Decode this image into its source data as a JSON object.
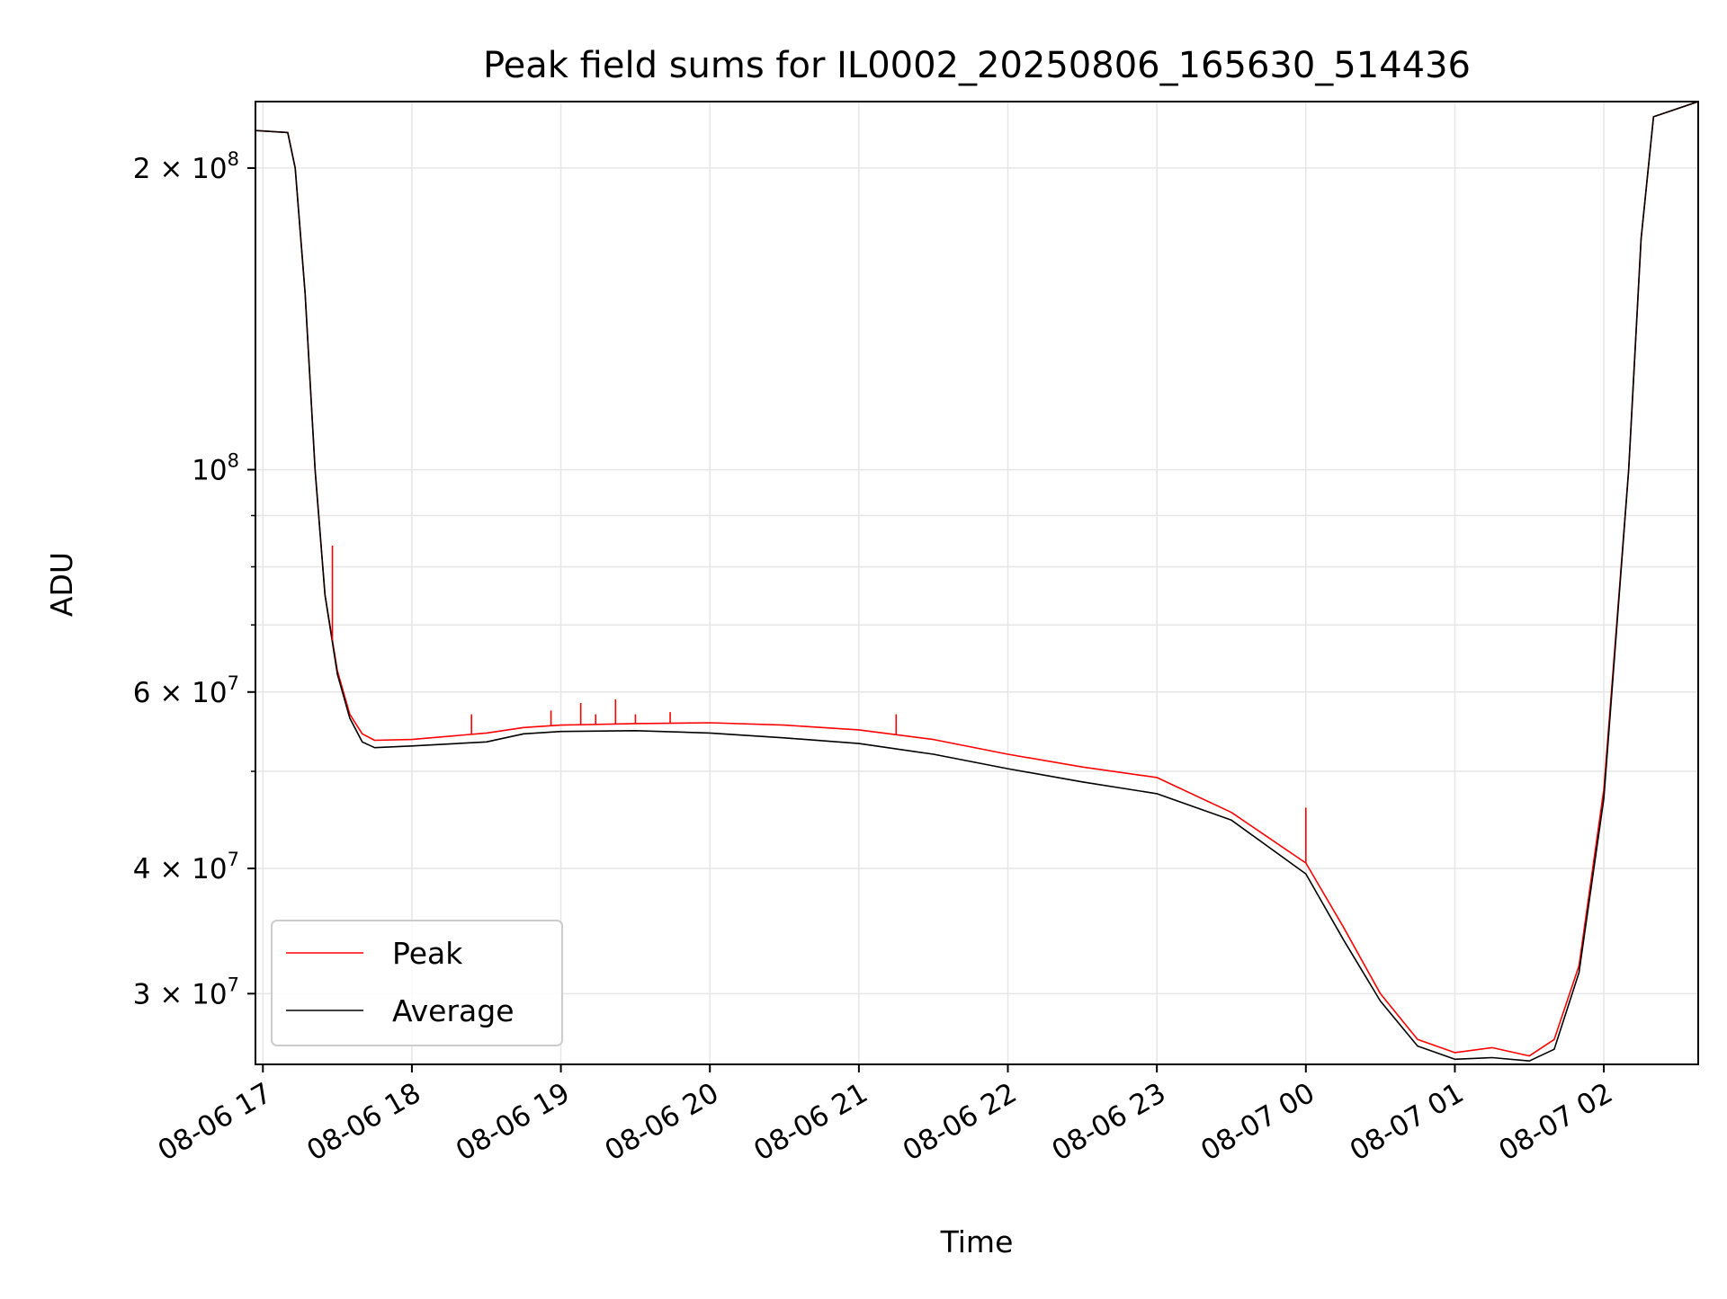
{
  "chart_data": {
    "type": "line",
    "title": "Peak field sums for IL0002_20250806_165630_514436",
    "xlabel": "Time",
    "ylabel": "ADU",
    "y_scale": "log",
    "ylim": [
      25500000,
      233000000
    ],
    "x_range": [
      "2025-08-06 16:57",
      "2025-08-07 02:38"
    ],
    "grid": true,
    "legend_position": "lower-left",
    "x_ticks": [
      {
        "t": "2025-08-06 17:00",
        "label": "08-06 17"
      },
      {
        "t": "2025-08-06 18:00",
        "label": "08-06 18"
      },
      {
        "t": "2025-08-06 19:00",
        "label": "08-06 19"
      },
      {
        "t": "2025-08-06 20:00",
        "label": "08-06 20"
      },
      {
        "t": "2025-08-06 21:00",
        "label": "08-06 21"
      },
      {
        "t": "2025-08-06 22:00",
        "label": "08-06 22"
      },
      {
        "t": "2025-08-06 23:00",
        "label": "08-06 23"
      },
      {
        "t": "2025-08-07 00:00",
        "label": "08-07 00"
      },
      {
        "t": "2025-08-07 01:00",
        "label": "08-07 01"
      },
      {
        "t": "2025-08-07 02:00",
        "label": "08-07 02"
      }
    ],
    "y_ticks_major": [
      {
        "value": 200000000,
        "mant": "2 × 10",
        "exp": "8"
      },
      {
        "value": 100000000,
        "mant": "10",
        "exp": "8"
      },
      {
        "value": 60000000,
        "mant": "6 × 10",
        "exp": "7"
      },
      {
        "value": 40000000,
        "mant": "4 × 10",
        "exp": "7"
      },
      {
        "value": 30000000,
        "mant": "3 × 10",
        "exp": "7"
      }
    ],
    "y_grid_minor": [
      50000000,
      70000000,
      80000000,
      90000000
    ],
    "series": [
      {
        "name": "Peak",
        "color": "#ff0000",
        "x": [
          "2025-08-06 16:57",
          "2025-08-06 17:10",
          "2025-08-06 17:13",
          "2025-08-06 17:17",
          "2025-08-06 17:21",
          "2025-08-06 17:25",
          "2025-08-06 17:30",
          "2025-08-06 17:35",
          "2025-08-06 17:40",
          "2025-08-06 17:45",
          "2025-08-06 18:00",
          "2025-08-06 18:30",
          "2025-08-06 18:45",
          "2025-08-06 19:00",
          "2025-08-06 19:30",
          "2025-08-06 20:00",
          "2025-08-06 20:30",
          "2025-08-06 21:00",
          "2025-08-06 21:30",
          "2025-08-06 22:00",
          "2025-08-06 22:30",
          "2025-08-06 23:00",
          "2025-08-06 23:30",
          "2025-08-07 00:00",
          "2025-08-07 00:15",
          "2025-08-07 00:30",
          "2025-08-07 00:45",
          "2025-08-07 01:00",
          "2025-08-07 01:15",
          "2025-08-07 01:30",
          "2025-08-07 01:40",
          "2025-08-07 01:50",
          "2025-08-07 02:00",
          "2025-08-07 02:10",
          "2025-08-07 02:15",
          "2025-08-07 02:20",
          "2025-08-07 02:38"
        ],
        "values": [
          218000000,
          217000000,
          200000000,
          150000000,
          100000000,
          75000000,
          63000000,
          57000000,
          54500000,
          53700000,
          53800000,
          54600000,
          55300000,
          55600000,
          55800000,
          55900000,
          55600000,
          55000000,
          53800000,
          52000000,
          50500000,
          49300000,
          45500000,
          40500000,
          35000000,
          30000000,
          27000000,
          26200000,
          26500000,
          26000000,
          27000000,
          32000000,
          48000000,
          100000000,
          170000000,
          225000000,
          233000000
        ]
      },
      {
        "name": "Average",
        "color": "#000000",
        "x": [
          "2025-08-06 16:57",
          "2025-08-06 17:10",
          "2025-08-06 17:13",
          "2025-08-06 17:17",
          "2025-08-06 17:21",
          "2025-08-06 17:25",
          "2025-08-06 17:30",
          "2025-08-06 17:35",
          "2025-08-06 17:40",
          "2025-08-06 17:45",
          "2025-08-06 18:00",
          "2025-08-06 18:30",
          "2025-08-06 18:45",
          "2025-08-06 19:00",
          "2025-08-06 19:30",
          "2025-08-06 20:00",
          "2025-08-06 20:30",
          "2025-08-06 21:00",
          "2025-08-06 21:30",
          "2025-08-06 22:00",
          "2025-08-06 22:30",
          "2025-08-06 23:00",
          "2025-08-06 23:30",
          "2025-08-07 00:00",
          "2025-08-07 00:15",
          "2025-08-07 00:30",
          "2025-08-07 00:45",
          "2025-08-07 01:00",
          "2025-08-07 01:15",
          "2025-08-07 01:30",
          "2025-08-07 01:40",
          "2025-08-07 01:50",
          "2025-08-07 02:00",
          "2025-08-07 02:10",
          "2025-08-07 02:15",
          "2025-08-07 02:20",
          "2025-08-07 02:38"
        ],
        "values": [
          218000000,
          217000000,
          200000000,
          150000000,
          100000000,
          75000000,
          62500000,
          56500000,
          53500000,
          52800000,
          53000000,
          53500000,
          54500000,
          54800000,
          54900000,
          54600000,
          54000000,
          53300000,
          52000000,
          50300000,
          48800000,
          47500000,
          44700000,
          39500000,
          34000000,
          29500000,
          26600000,
          25800000,
          25900000,
          25700000,
          26400000,
          31500000,
          47000000,
          100000000,
          170000000,
          225000000,
          233000000
        ]
      }
    ],
    "spikes": [
      {
        "t": "2025-08-06 17:28",
        "value": 84000000
      },
      {
        "t": "2025-08-06 18:24",
        "value": 57000000
      },
      {
        "t": "2025-08-06 18:56",
        "value": 57500000
      },
      {
        "t": "2025-08-06 19:08",
        "value": 58500000
      },
      {
        "t": "2025-08-06 19:14",
        "value": 57000000
      },
      {
        "t": "2025-08-06 19:22",
        "value": 59000000
      },
      {
        "t": "2025-08-06 19:30",
        "value": 57000000
      },
      {
        "t": "2025-08-06 19:44",
        "value": 57300000
      },
      {
        "t": "2025-08-06 21:15",
        "value": 57000000
      },
      {
        "t": "2025-08-07 00:00",
        "value": 46000000
      }
    ]
  }
}
